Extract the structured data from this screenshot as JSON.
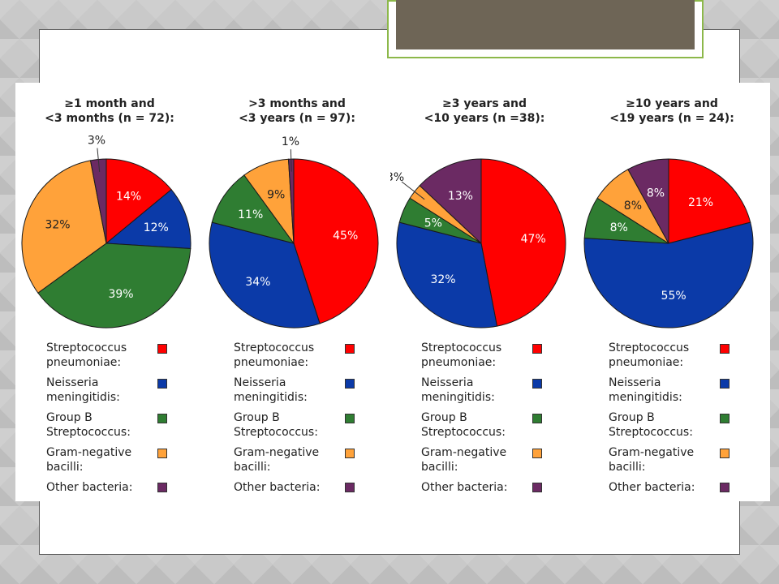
{
  "legend_items": [
    {
      "lines": [
        "Streptococcus",
        "pneumoniae:"
      ],
      "color": "#ff0000"
    },
    {
      "lines": [
        "Neisseria",
        "meningitidis:"
      ],
      "color": "#0b3aa8"
    },
    {
      "lines": [
        "Group B",
        "Streptococcus:"
      ],
      "color": "#2f7d32"
    },
    {
      "lines": [
        "Gram-negative",
        "bacilli:"
      ],
      "color": "#ffa23a"
    },
    {
      "lines": [
        "Other bacteria:"
      ],
      "color": "#6b2a63"
    }
  ],
  "chart_data": [
    {
      "type": "pie",
      "title_lines": [
        "≥1 month and",
        "<3 months (n = 72):"
      ],
      "slices": [
        {
          "category": "Streptococcus pneumoniae",
          "value": 14,
          "label": "14%"
        },
        {
          "category": "Neisseria meningitidis",
          "value": 12,
          "label": "12%"
        },
        {
          "category": "Group B Streptococcus",
          "value": 39,
          "label": "39%"
        },
        {
          "category": "Gram-negative bacilli",
          "value": 32,
          "label": "32%"
        },
        {
          "category": "Other bacteria",
          "value": 3,
          "label": "3%"
        }
      ]
    },
    {
      "type": "pie",
      "title_lines": [
        ">3 months and",
        "<3 years (n = 97):"
      ],
      "slices": [
        {
          "category": "Streptococcus pneumoniae",
          "value": 45,
          "label": "45%"
        },
        {
          "category": "Neisseria meningitidis",
          "value": 34,
          "label": "34%"
        },
        {
          "category": "Group B Streptococcus",
          "value": 11,
          "label": "11%"
        },
        {
          "category": "Gram-negative bacilli",
          "value": 9,
          "label": "9%"
        },
        {
          "category": "Other bacteria",
          "value": 1,
          "label": "1%"
        }
      ]
    },
    {
      "type": "pie",
      "title_lines": [
        "≥3 years and",
        "<10 years (n =38):"
      ],
      "slices": [
        {
          "category": "Streptococcus pneumoniae",
          "value": 47,
          "label": "47%"
        },
        {
          "category": "Neisseria meningitidis",
          "value": 32,
          "label": "32%"
        },
        {
          "category": "Group B Streptococcus",
          "value": 5,
          "label": "5%"
        },
        {
          "category": "Gram-negative bacilli",
          "value": 3,
          "label": "3%"
        },
        {
          "category": "Other bacteria",
          "value": 13,
          "label": "13%"
        }
      ]
    },
    {
      "type": "pie",
      "title_lines": [
        "≥10 years and",
        "<19 years (n = 24):"
      ],
      "slices": [
        {
          "category": "Streptococcus pneumoniae",
          "value": 21,
          "label": "21%"
        },
        {
          "category": "Neisseria meningitidis",
          "value": 55,
          "label": "55%"
        },
        {
          "category": "Group B Streptococcus",
          "value": 8,
          "label": "8%"
        },
        {
          "category": "Gram-negative bacilli",
          "value": 8,
          "label": "8%"
        },
        {
          "category": "Other bacteria",
          "value": 8,
          "label": "8%"
        }
      ]
    }
  ]
}
